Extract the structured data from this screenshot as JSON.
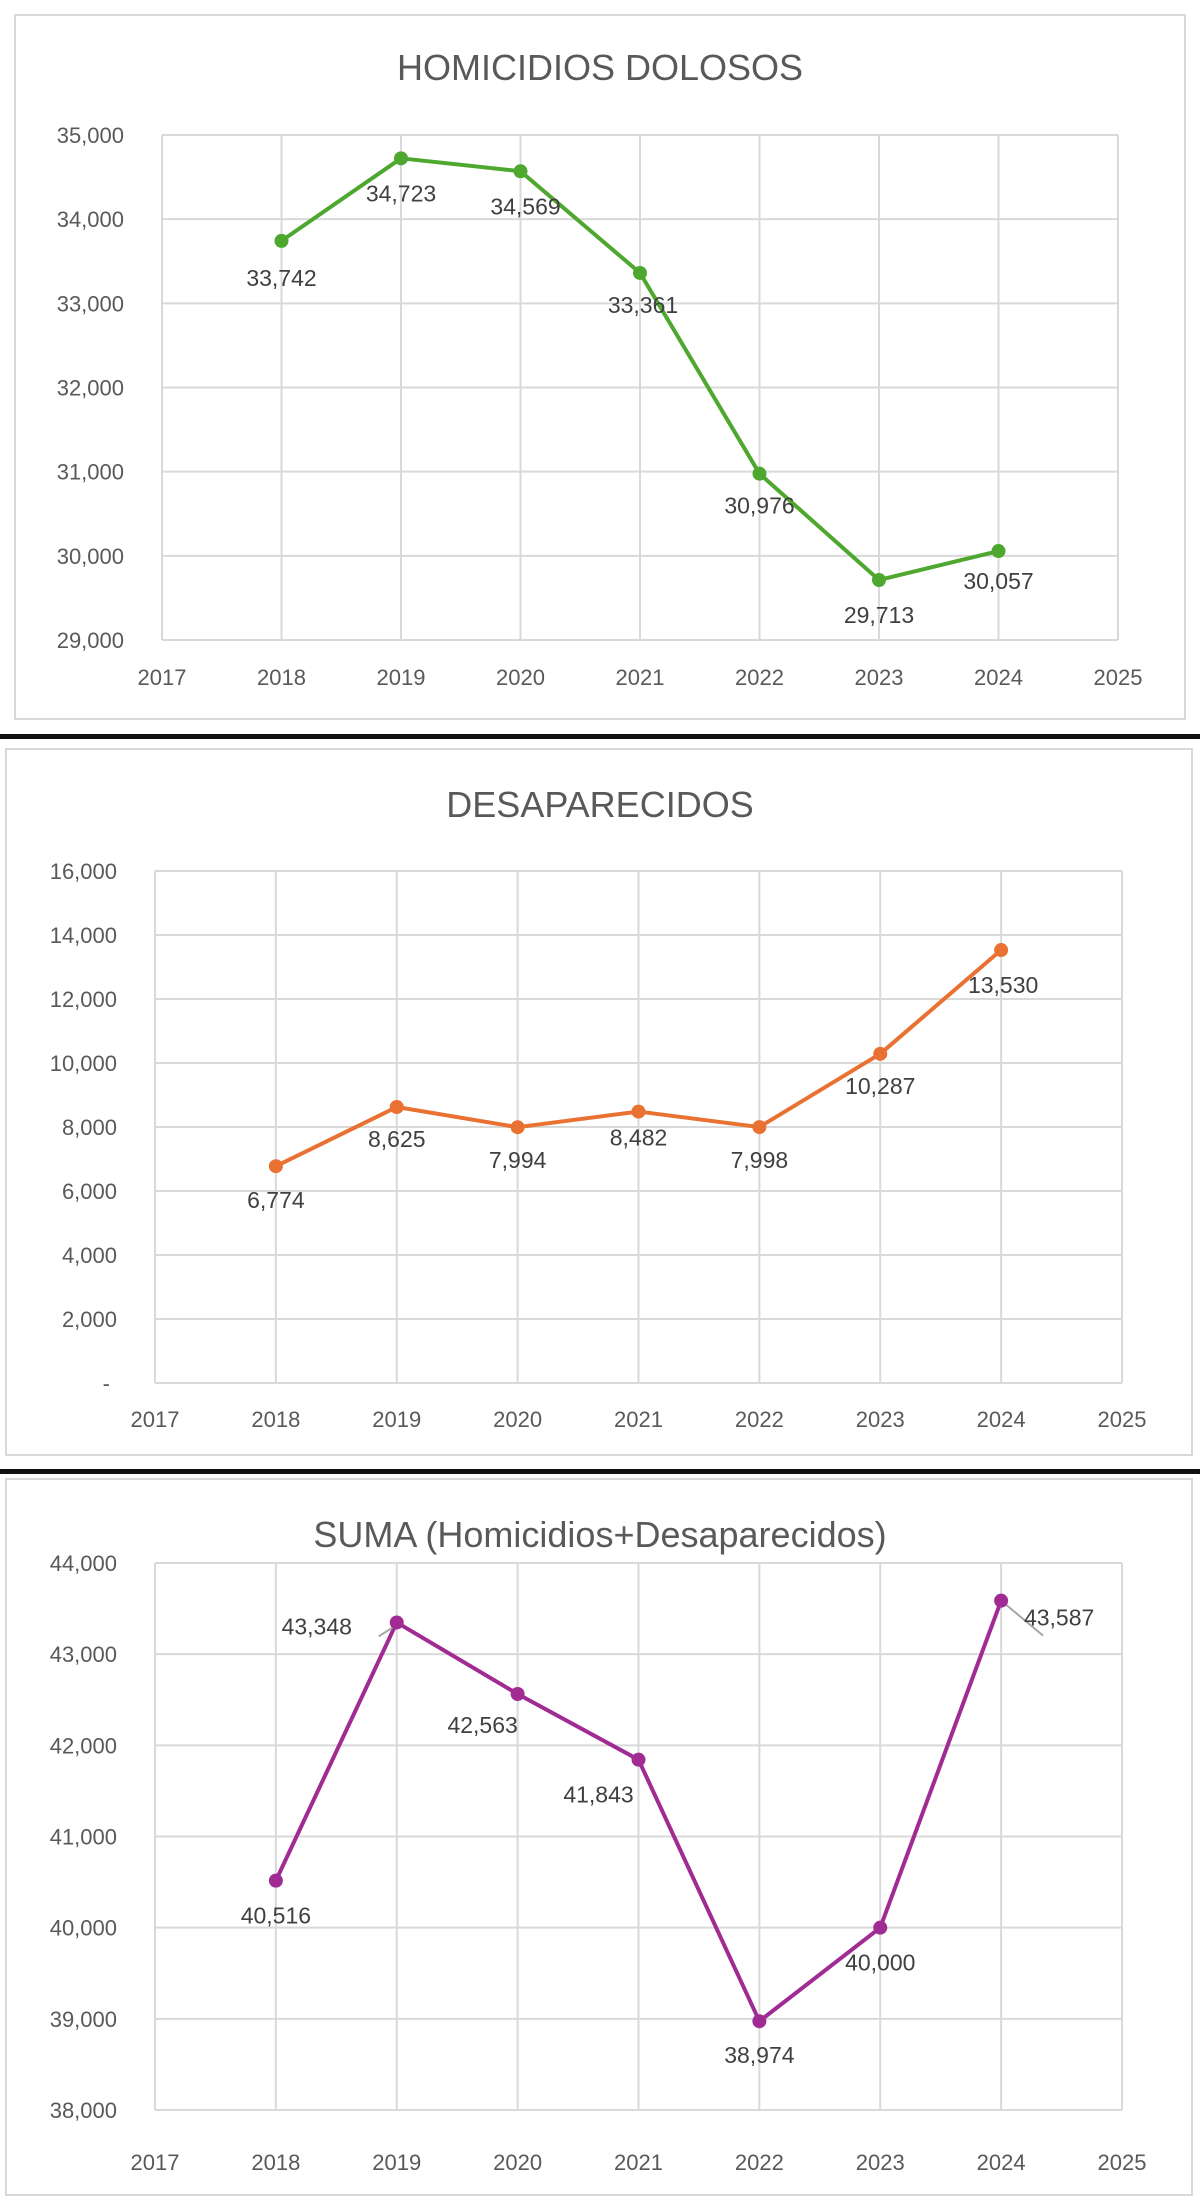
{
  "chart_data": [
    {
      "type": "line",
      "title": "HOMICIDIOS DOLOSOS",
      "xlabel": "",
      "ylabel": "",
      "x": [
        2018,
        2019,
        2020,
        2021,
        2022,
        2023,
        2024
      ],
      "values": [
        33742,
        34723,
        34569,
        33361,
        30976,
        29713,
        30057
      ],
      "data_labels": [
        "33,742",
        "34,723",
        "34,569",
        "33,361",
        "30,976",
        "29,713",
        "30,057"
      ],
      "xlim": [
        2017,
        2025
      ],
      "ylim": [
        29000,
        35000
      ],
      "x_ticks": [
        "2017",
        "2018",
        "2019",
        "2020",
        "2021",
        "2022",
        "2023",
        "2024",
        "2025"
      ],
      "y_ticks": [
        "29,000",
        "30,000",
        "31,000",
        "32,000",
        "33,000",
        "34,000",
        "35,000"
      ],
      "color": "#4ea72e",
      "grid": true,
      "legend": "none"
    },
    {
      "type": "line",
      "title": "DESAPARECIDOS",
      "xlabel": "",
      "ylabel": "",
      "x": [
        2018,
        2019,
        2020,
        2021,
        2022,
        2023,
        2024
      ],
      "values": [
        6774,
        8625,
        7994,
        8482,
        7998,
        10287,
        13530
      ],
      "data_labels": [
        "6,774",
        "8,625",
        "7,994",
        "8,482",
        "7,998",
        "10,287",
        "13,530"
      ],
      "xlim": [
        2017,
        2025
      ],
      "ylim": [
        0,
        16000
      ],
      "x_ticks": [
        "2017",
        "2018",
        "2019",
        "2020",
        "2021",
        "2022",
        "2023",
        "2024",
        "2025"
      ],
      "y_ticks": [
        "-",
        "2,000",
        "4,000",
        "6,000",
        "8,000",
        "10,000",
        "12,000",
        "14,000",
        "16,000"
      ],
      "color": "#e97132",
      "grid": true,
      "legend": "none"
    },
    {
      "type": "line",
      "title": "SUMA (Homicidios+Desaparecidos)",
      "xlabel": "",
      "ylabel": "",
      "x": [
        2018,
        2019,
        2020,
        2021,
        2022,
        2023,
        2024
      ],
      "values": [
        40516,
        43348,
        42563,
        41843,
        38974,
        40000,
        43587
      ],
      "data_labels": [
        "40,516",
        "43,348",
        "42,563",
        "41,843",
        "38,974",
        "40,000",
        "43,587"
      ],
      "xlim": [
        2017,
        2025
      ],
      "ylim": [
        38000,
        44000
      ],
      "x_ticks": [
        "2017",
        "2018",
        "2019",
        "2020",
        "2021",
        "2022",
        "2023",
        "2024",
        "2025"
      ],
      "y_ticks": [
        "38,000",
        "39,000",
        "40,000",
        "41,000",
        "42,000",
        "43,000",
        "44,000"
      ],
      "color": "#a02b93",
      "grid": true,
      "legend": "none"
    }
  ]
}
